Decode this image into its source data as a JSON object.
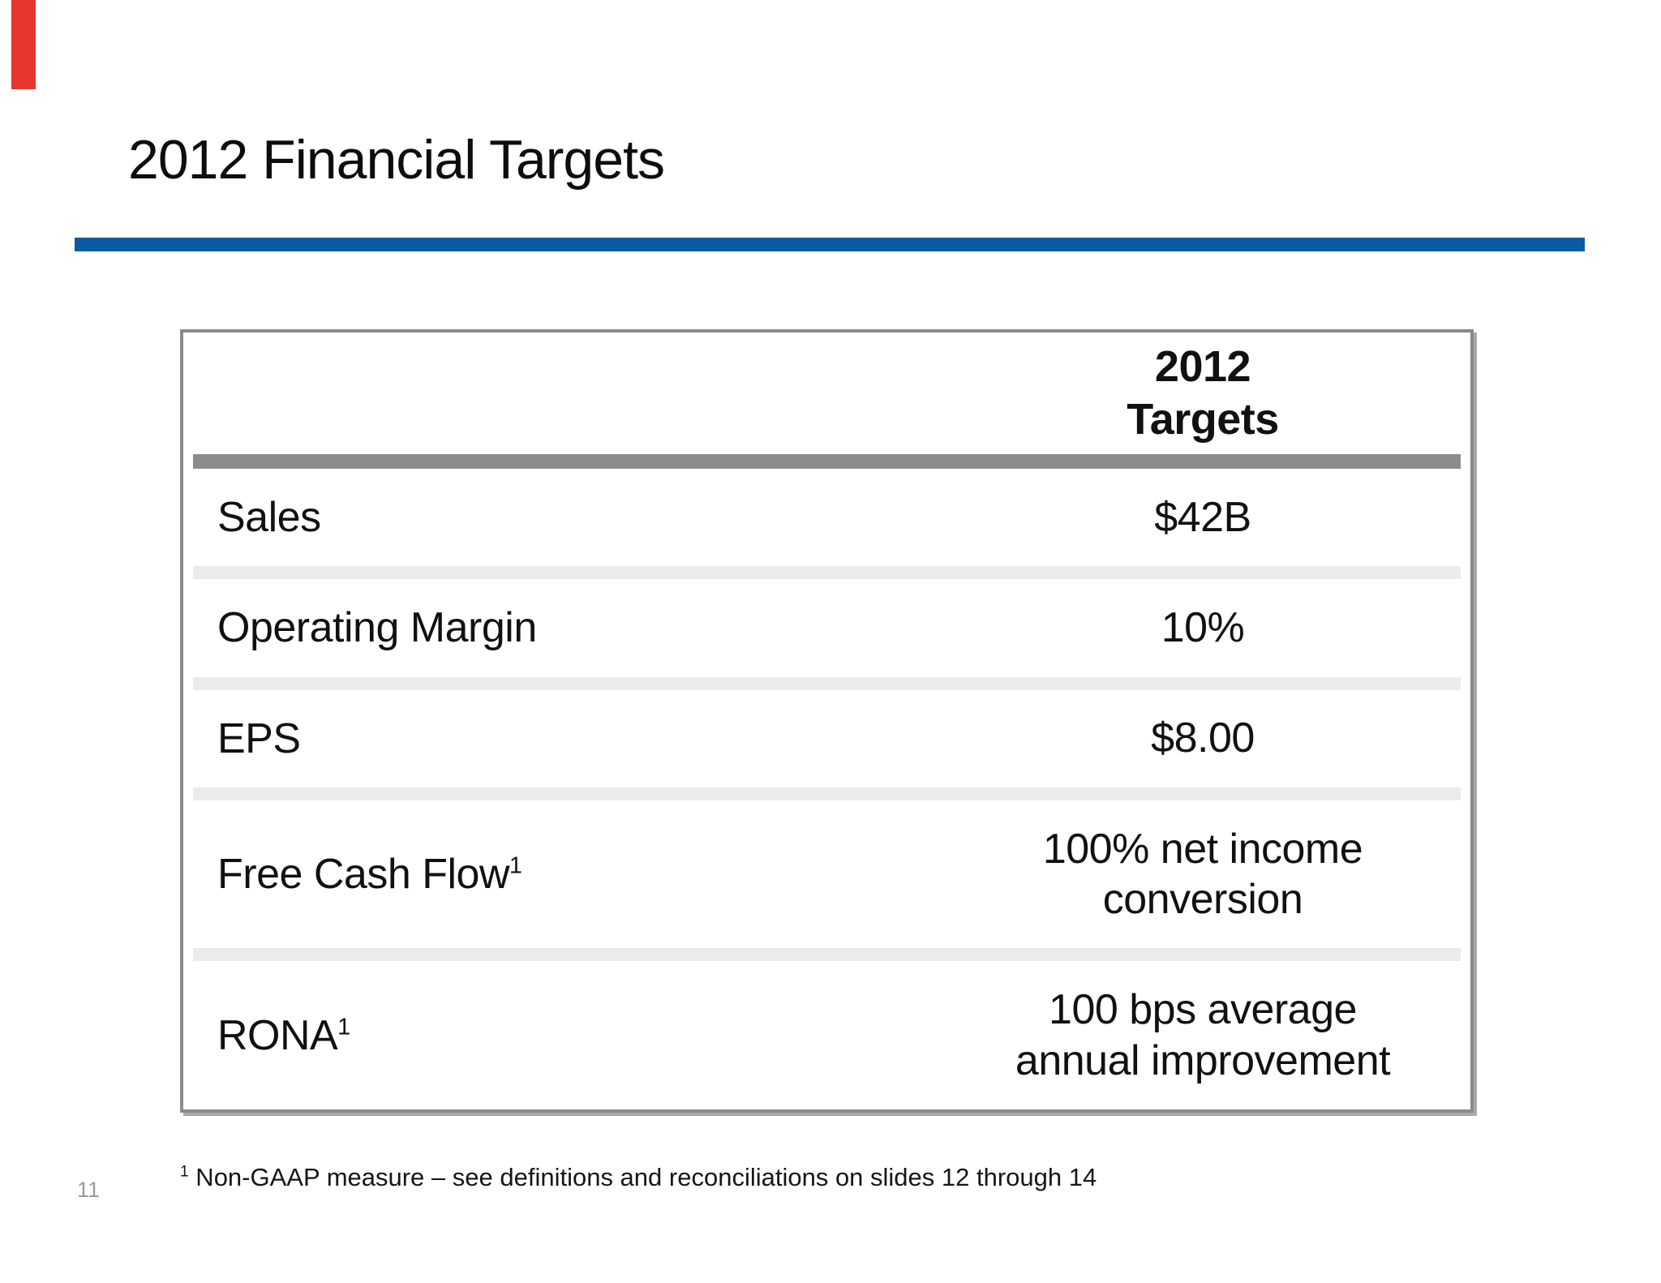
{
  "slide": {
    "title": "2012 Financial Targets",
    "page_number": "11",
    "footnote": {
      "superscript": "1",
      "text": " Non-GAAP measure – see definitions and reconciliations on slides 12 through 14"
    },
    "colors": {
      "rule_blue": "#0b5aa5",
      "corner_red": "#e8352e",
      "table_border_gray": "#8a8a8a",
      "header_bar_gray": "#8c8c8c",
      "separator_gray": "#ebebeb"
    }
  },
  "table": {
    "header": {
      "line1": "2012",
      "line2": "Targets"
    },
    "rows": [
      {
        "label": "Sales",
        "superscript": "",
        "value_lines": [
          "$42B"
        ]
      },
      {
        "label": "Operating Margin",
        "superscript": "",
        "value_lines": [
          "10%"
        ]
      },
      {
        "label": "EPS",
        "superscript": "",
        "value_lines": [
          "$8.00"
        ]
      },
      {
        "label": "Free Cash Flow",
        "superscript": "1",
        "value_lines": [
          "100% net income",
          "conversion"
        ]
      },
      {
        "label": "RONA",
        "superscript": "1",
        "value_lines": [
          "100 bps average",
          "annual improvement"
        ]
      }
    ]
  }
}
